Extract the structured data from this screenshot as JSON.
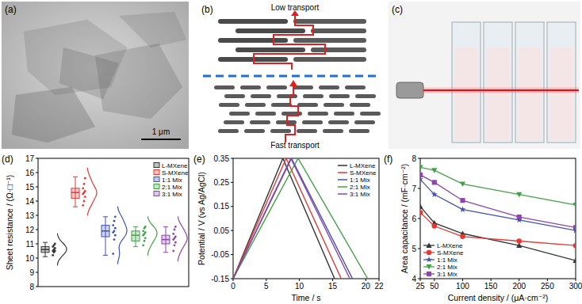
{
  "figure": {
    "panels": [
      {
        "label": "(a)",
        "scale_bar": "1 μm"
      },
      {
        "label": "(b)",
        "top_text": "Low transport",
        "bottom_text": "Fast transport"
      },
      {
        "label": "(c)"
      }
    ]
  },
  "chart_data": [
    {
      "type": "box",
      "title": "(d)",
      "ylabel": "Sheet resistance / (Ω·□⁻¹)",
      "ylim": [
        8,
        17
      ],
      "yticks": [
        8,
        9,
        10,
        11,
        12,
        13,
        14,
        15,
        16,
        17
      ],
      "grid": false,
      "legend": "upper right",
      "tick_labels": "y",
      "series": [
        {
          "name": "L-MXene",
          "color": "#333333",
          "whisker_low": 10.1,
          "q1": 10.4,
          "median": 10.6,
          "q3": 10.8,
          "whisker_high": 11.1,
          "points": [
            10.2,
            10.4,
            10.5,
            10.5,
            10.6,
            10.7,
            10.8,
            10.9,
            11.0
          ]
        },
        {
          "name": "S-MXene",
          "color": "#e53935",
          "whisker_low": 13.6,
          "q1": 14.2,
          "median": 14.6,
          "q3": 14.9,
          "whisker_high": 15.7,
          "points": [
            13.7,
            14.0,
            14.3,
            14.5,
            14.6,
            14.7,
            14.9,
            15.2,
            15.6
          ]
        },
        {
          "name": "1:1 Mix",
          "color": "#3f51b5",
          "whisker_low": 10.2,
          "q1": 11.5,
          "median": 11.9,
          "q3": 12.3,
          "whisker_high": 12.9,
          "points": [
            10.3,
            11.3,
            11.6,
            11.8,
            11.9,
            12.1,
            12.3,
            12.6,
            12.9
          ]
        },
        {
          "name": "2:1 Mix",
          "color": "#43a047",
          "whisker_low": 10.8,
          "q1": 11.2,
          "median": 11.6,
          "q3": 11.9,
          "whisker_high": 12.2,
          "points": [
            10.9,
            11.2,
            11.4,
            11.6,
            11.7,
            11.8,
            11.9,
            12.1,
            12.2
          ]
        },
        {
          "name": "3:1 Mix",
          "color": "#8e44ad",
          "whisker_low": 10.4,
          "q1": 11.0,
          "median": 11.3,
          "q3": 11.6,
          "whisker_high": 12.2,
          "points": [
            10.5,
            10.9,
            11.1,
            11.3,
            11.4,
            11.5,
            11.7,
            12.0,
            12.2
          ]
        }
      ]
    },
    {
      "type": "line",
      "title": "(e)",
      "xlabel": "Time / s",
      "ylabel": "Potential / V (vs Ag/AgCl)",
      "xlim": [
        0,
        22
      ],
      "xticks": [
        0,
        5,
        10,
        15,
        20,
        22
      ],
      "ylim": [
        -0.15,
        0.35
      ],
      "yticks": [
        -0.15,
        -0.05,
        0.05,
        0.15,
        0.25,
        0.35
      ],
      "grid": false,
      "legend": "upper right",
      "series": [
        {
          "name": "L-MXene",
          "color": "#333333",
          "x": [
            0,
            7.5,
            15.3
          ],
          "values": [
            -0.15,
            0.35,
            -0.15
          ]
        },
        {
          "name": "S-MXene",
          "color": "#e53935",
          "x": [
            0,
            8.0,
            16.3
          ],
          "values": [
            -0.15,
            0.35,
            -0.15
          ]
        },
        {
          "name": "1:1 Mix",
          "color": "#3f51b5",
          "x": [
            0,
            8.8,
            18.0
          ],
          "values": [
            -0.15,
            0.35,
            -0.15
          ]
        },
        {
          "name": "2:1 Mix",
          "color": "#43a047",
          "x": [
            0,
            9.8,
            20.3
          ],
          "values": [
            -0.15,
            0.35,
            -0.15
          ]
        },
        {
          "name": "3:1 Mix",
          "color": "#8e44ad",
          "x": [
            0,
            8.7,
            17.6
          ],
          "values": [
            -0.15,
            0.35,
            -0.15
          ]
        }
      ]
    },
    {
      "type": "line",
      "title": "(f)",
      "xlabel": "Current density / (μA·cm⁻²)",
      "ylabel": "Area capacitance / (mF·cm⁻²)",
      "xlim": [
        25,
        300
      ],
      "xticks": [
        25,
        50,
        100,
        150,
        200,
        250,
        300
      ],
      "ylim": [
        4,
        8
      ],
      "yticks": [
        4,
        5,
        6,
        7,
        8
      ],
      "grid": false,
      "legend": "lower left",
      "x": [
        25,
        50,
        100,
        200,
        300
      ],
      "series": [
        {
          "name": "L-MXene",
          "color": "#333333",
          "marker": "triangle",
          "values": [
            6.4,
            5.85,
            5.5,
            5.1,
            4.6
          ]
        },
        {
          "name": "S-MXene",
          "color": "#e53935",
          "marker": "circle",
          "values": [
            6.2,
            5.75,
            5.4,
            5.25,
            5.1
          ]
        },
        {
          "name": "1:1 Mix",
          "color": "#3f51b5",
          "marker": "star",
          "values": [
            7.3,
            6.8,
            6.3,
            5.95,
            5.6
          ]
        },
        {
          "name": "2:1 Mix",
          "color": "#43a047",
          "marker": "triangle-down",
          "values": [
            7.7,
            7.6,
            7.15,
            6.8,
            6.45
          ]
        },
        {
          "name": "3:1 Mix",
          "color": "#8e44ad",
          "marker": "square",
          "values": [
            7.45,
            7.2,
            6.6,
            6.05,
            5.7
          ]
        }
      ]
    }
  ]
}
